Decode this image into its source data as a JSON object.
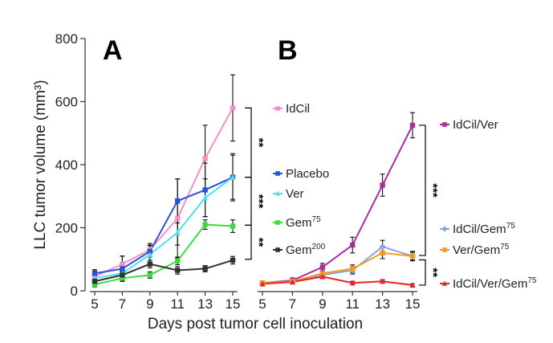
{
  "chart_data": {
    "type": "line",
    "ylabel": "LLC tumor volume (mm³)",
    "xlabel": "Days post tumor cell inoculation",
    "ylim": [
      0,
      800
    ],
    "yticks": [
      "0",
      "200",
      "400",
      "600",
      "800"
    ],
    "x": [
      5,
      7,
      9,
      11,
      13,
      15
    ],
    "xticks": [
      "5",
      "7",
      "9",
      "11",
      "13",
      "15"
    ],
    "grid": false,
    "panels": [
      {
        "label": "A",
        "series": [
          {
            "name": "IdCil",
            "color": "#f48fc8",
            "marker": "square",
            "values": [
              45,
              85,
              130,
              230,
              420,
              580
            ],
            "errors": [
              18,
              25,
              20,
              125,
              105,
              105
            ]
          },
          {
            "name": "Placebo",
            "color": "#2a52d9",
            "marker": "square",
            "values": [
              55,
              70,
              125,
              285,
              320,
              360
            ],
            "errors": [
              12,
              40,
              18,
              70,
              85,
              75
            ]
          },
          {
            "name": "Ver",
            "color": "#4de0ee",
            "marker": "triangle",
            "values": [
              40,
              55,
              115,
              185,
              295,
              360
            ],
            "errors": [
              12,
              15,
              30,
              40,
              60,
              70
            ]
          },
          {
            "name": "Gem",
            "name_sup": "75",
            "color": "#3ddc3d",
            "marker": "square",
            "values": [
              20,
              40,
              50,
              95,
              210,
              205
            ],
            "errors": [
              8,
              10,
              10,
              12,
              15,
              20
            ]
          },
          {
            "name": "Gem",
            "name_sup": "200",
            "color": "#303030",
            "marker": "square",
            "values": [
              30,
              50,
              85,
              65,
              70,
              97
            ],
            "errors": [
              8,
              12,
              12,
              12,
              10,
              12
            ]
          }
        ],
        "significance": [
          "**",
          "***",
          "**"
        ]
      },
      {
        "label": "B",
        "series": [
          {
            "name": "IdCil/Ver",
            "color": "#b02c9c",
            "marker": "square",
            "values": [
              25,
              33,
              75,
              145,
              335,
              525
            ],
            "errors": [
              5,
              8,
              12,
              25,
              35,
              40
            ]
          },
          {
            "name": "IdCil/Gem",
            "name_sup": "75",
            "color": "#8aa4e2",
            "marker": "diamond",
            "values": [
              25,
              30,
              50,
              65,
              140,
              110
            ],
            "errors": [
              5,
              5,
              8,
              12,
              20,
              15
            ]
          },
          {
            "name": "Ver/Gem",
            "name_sup": "75",
            "color": "#f29a22",
            "marker": "square",
            "values": [
              25,
              30,
              55,
              70,
              120,
              110
            ],
            "errors": [
              5,
              5,
              8,
              12,
              18,
              12
            ]
          },
          {
            "name": "IdCil/Ver/Gem",
            "name_sup": "75",
            "color": "#e8242a",
            "marker": "triangle",
            "values": [
              22,
              28,
              45,
              25,
              30,
              18
            ],
            "errors": [
              4,
              4,
              6,
              5,
              5,
              4
            ]
          }
        ],
        "significance": [
          "***",
          "**"
        ]
      }
    ]
  }
}
